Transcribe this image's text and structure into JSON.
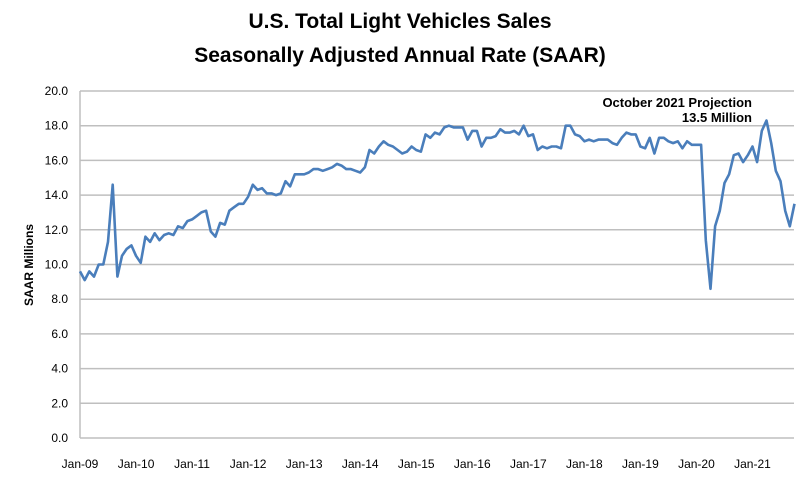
{
  "chart_data": {
    "type": "line",
    "title": "U.S. Total Light Vehicles Sales",
    "subtitle": "Seasonally Adjusted Annual Rate (SAAR)",
    "xlabel": "",
    "ylabel": "SAAR Millions",
    "ylim": [
      0,
      20
    ],
    "yticks": [
      "0.0",
      "2.0",
      "4.0",
      "6.0",
      "8.0",
      "10.0",
      "12.0",
      "14.0",
      "16.0",
      "18.0",
      "20.0"
    ],
    "xticks": [
      "Jan-09",
      "Jan-10",
      "Jan-11",
      "Jan-12",
      "Jan-13",
      "Jan-14",
      "Jan-15",
      "Jan-16",
      "Jan-17",
      "Jan-18",
      "Jan-19",
      "Jan-20",
      "Jan-21"
    ],
    "x_start": "Jan-09",
    "x_end": "Oct-21",
    "frequency": "monthly",
    "grid": "horizontal",
    "line_color": "#4a7ebb",
    "annotation": [
      "October 2021 Projection",
      "13.5 Million"
    ],
    "values": [
      9.6,
      9.1,
      9.6,
      9.3,
      10.0,
      10.0,
      11.3,
      14.6,
      9.3,
      10.5,
      10.9,
      11.1,
      10.5,
      10.1,
      11.6,
      11.3,
      11.8,
      11.4,
      11.7,
      11.8,
      11.7,
      12.2,
      12.1,
      12.5,
      12.6,
      12.8,
      13.0,
      13.1,
      11.9,
      11.6,
      12.4,
      12.3,
      13.1,
      13.3,
      13.5,
      13.5,
      13.9,
      14.6,
      14.3,
      14.4,
      14.1,
      14.1,
      14.0,
      14.1,
      14.8,
      14.5,
      15.2,
      15.2,
      15.2,
      15.3,
      15.5,
      15.5,
      15.4,
      15.5,
      15.6,
      15.8,
      15.7,
      15.5,
      15.5,
      15.4,
      15.3,
      15.6,
      16.6,
      16.4,
      16.8,
      17.1,
      16.9,
      16.8,
      16.6,
      16.4,
      16.5,
      16.8,
      16.6,
      16.5,
      17.5,
      17.3,
      17.6,
      17.5,
      17.9,
      18.0,
      17.9,
      17.9,
      17.9,
      17.2,
      17.7,
      17.7,
      16.8,
      17.3,
      17.3,
      17.4,
      17.8,
      17.6,
      17.6,
      17.7,
      17.5,
      18.0,
      17.4,
      17.5,
      16.6,
      16.8,
      16.7,
      16.8,
      16.8,
      16.7,
      18.0,
      18.0,
      17.5,
      17.4,
      17.1,
      17.2,
      17.1,
      17.2,
      17.2,
      17.2,
      17.0,
      16.9,
      17.3,
      17.6,
      17.5,
      17.5,
      16.8,
      16.7,
      17.3,
      16.4,
      17.3,
      17.3,
      17.1,
      17.0,
      17.1,
      16.7,
      17.1,
      16.9,
      16.9,
      16.9,
      11.4,
      8.6,
      12.2,
      13.1,
      14.7,
      15.2,
      16.3,
      16.4,
      15.9,
      16.3,
      16.8,
      15.9,
      17.7,
      18.3,
      17.0,
      15.4,
      14.8,
      13.1,
      12.2,
      13.5
    ]
  }
}
